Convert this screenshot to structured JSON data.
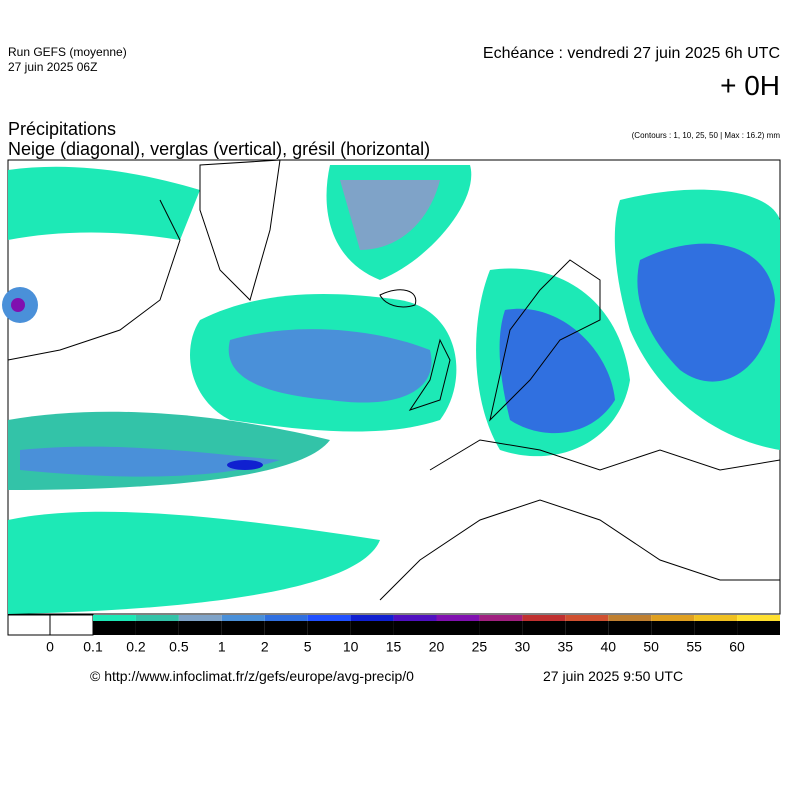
{
  "header": {
    "run": "Run GEFS (moyenne)",
    "run_date": "27 juin 2025 06Z",
    "echeance": "Echéance : vendredi 27 juin 2025 6h UTC",
    "offset": "+ 0H"
  },
  "titles": {
    "title": "Précipitations",
    "subtitle": "Neige (diagonal), verglas (vertical), grésil (horizontal)",
    "contours": "(Contours : 1, 10, 25, 50 | Max : 16.2) mm"
  },
  "legend": {
    "labels": [
      "0",
      "0.1",
      "0.2",
      "0.5",
      "1",
      "2",
      "5",
      "10",
      "15",
      "20",
      "25",
      "30",
      "35",
      "40",
      "50",
      "55",
      "60"
    ]
  },
  "footer": {
    "url": "© http://www.infoclimat.fr/z/gefs/europe/avg-precip/0",
    "timestamp": "27 juin 2025  9:50 UTC"
  }
}
